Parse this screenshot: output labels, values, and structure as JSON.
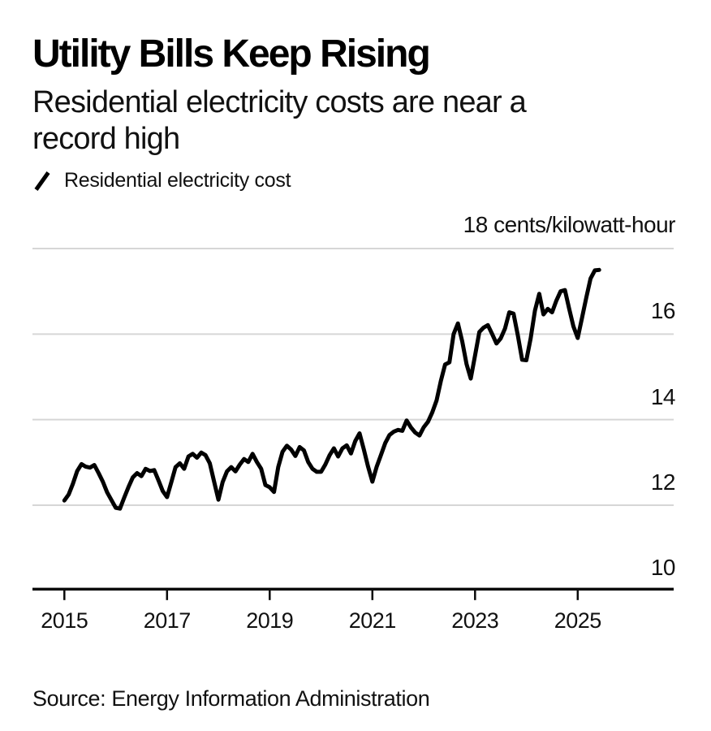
{
  "header": {
    "title": "Utility Bills Keep Rising",
    "subtitle": "Residential electricity costs are near a record high"
  },
  "legend": {
    "label": "Residential electricity cost"
  },
  "footer": {
    "source": "Source: Energy Information Administration"
  },
  "colors": {
    "line": "#000000",
    "grid": "#d6d6d6",
    "axis": "#0a0a0a",
    "text": "#111111",
    "background": "#ffffff"
  },
  "chart_data": {
    "type": "line",
    "title": "Utility Bills Keep Rising",
    "subtitle": "Residential electricity costs are near a record high",
    "unit": "cents/kilowatt-hour",
    "y_axis_top_label": "18 cents/kilowatt-hour",
    "xlabel": "",
    "ylabel": "cents/kilowatt-hour",
    "ylim": [
      10,
      18
    ],
    "yticks": [
      10,
      12,
      14,
      16,
      18
    ],
    "xticks": [
      2015,
      2017,
      2019,
      2021,
      2023,
      2025
    ],
    "grid": "horizontal",
    "legend_position": "top-left",
    "source": "Energy Information Administration",
    "series": [
      {
        "name": "Residential electricity cost",
        "color": "#000000",
        "frequency": "monthly",
        "start": {
          "year": 2015,
          "month": 1
        },
        "end": {
          "year": 2025,
          "month": 6
        },
        "values": [
          12.11,
          12.25,
          12.5,
          12.8,
          12.96,
          12.9,
          12.88,
          12.94,
          12.75,
          12.55,
          12.3,
          12.12,
          11.94,
          11.92,
          12.18,
          12.43,
          12.65,
          12.75,
          12.68,
          12.85,
          12.8,
          12.82,
          12.58,
          12.33,
          12.19,
          12.54,
          12.89,
          12.98,
          12.85,
          13.14,
          13.2,
          13.11,
          13.23,
          13.17,
          12.98,
          12.55,
          12.13,
          12.54,
          12.79,
          12.89,
          12.79,
          12.95,
          13.08,
          13.01,
          13.2,
          13.01,
          12.85,
          12.47,
          12.42,
          12.31,
          12.89,
          13.25,
          13.39,
          13.3,
          13.15,
          13.36,
          13.28,
          13.01,
          12.85,
          12.78,
          12.78,
          12.95,
          13.17,
          13.33,
          13.14,
          13.33,
          13.4,
          13.21,
          13.5,
          13.68,
          13.3,
          12.9,
          12.55,
          12.9,
          13.17,
          13.45,
          13.64,
          13.72,
          13.76,
          13.74,
          13.98,
          13.82,
          13.7,
          13.63,
          13.82,
          13.95,
          14.17,
          14.45,
          14.9,
          15.29,
          15.34,
          16.0,
          16.25,
          15.83,
          15.3,
          14.96,
          15.5,
          16.05,
          16.15,
          16.21,
          16.0,
          15.78,
          15.9,
          16.13,
          16.51,
          16.48,
          15.97,
          15.4,
          15.39,
          15.9,
          16.55,
          16.94,
          16.46,
          16.59,
          16.51,
          16.78,
          17.0,
          17.03,
          16.59,
          16.18,
          15.91,
          16.38,
          16.85,
          17.3,
          17.49,
          17.5
        ]
      }
    ]
  }
}
